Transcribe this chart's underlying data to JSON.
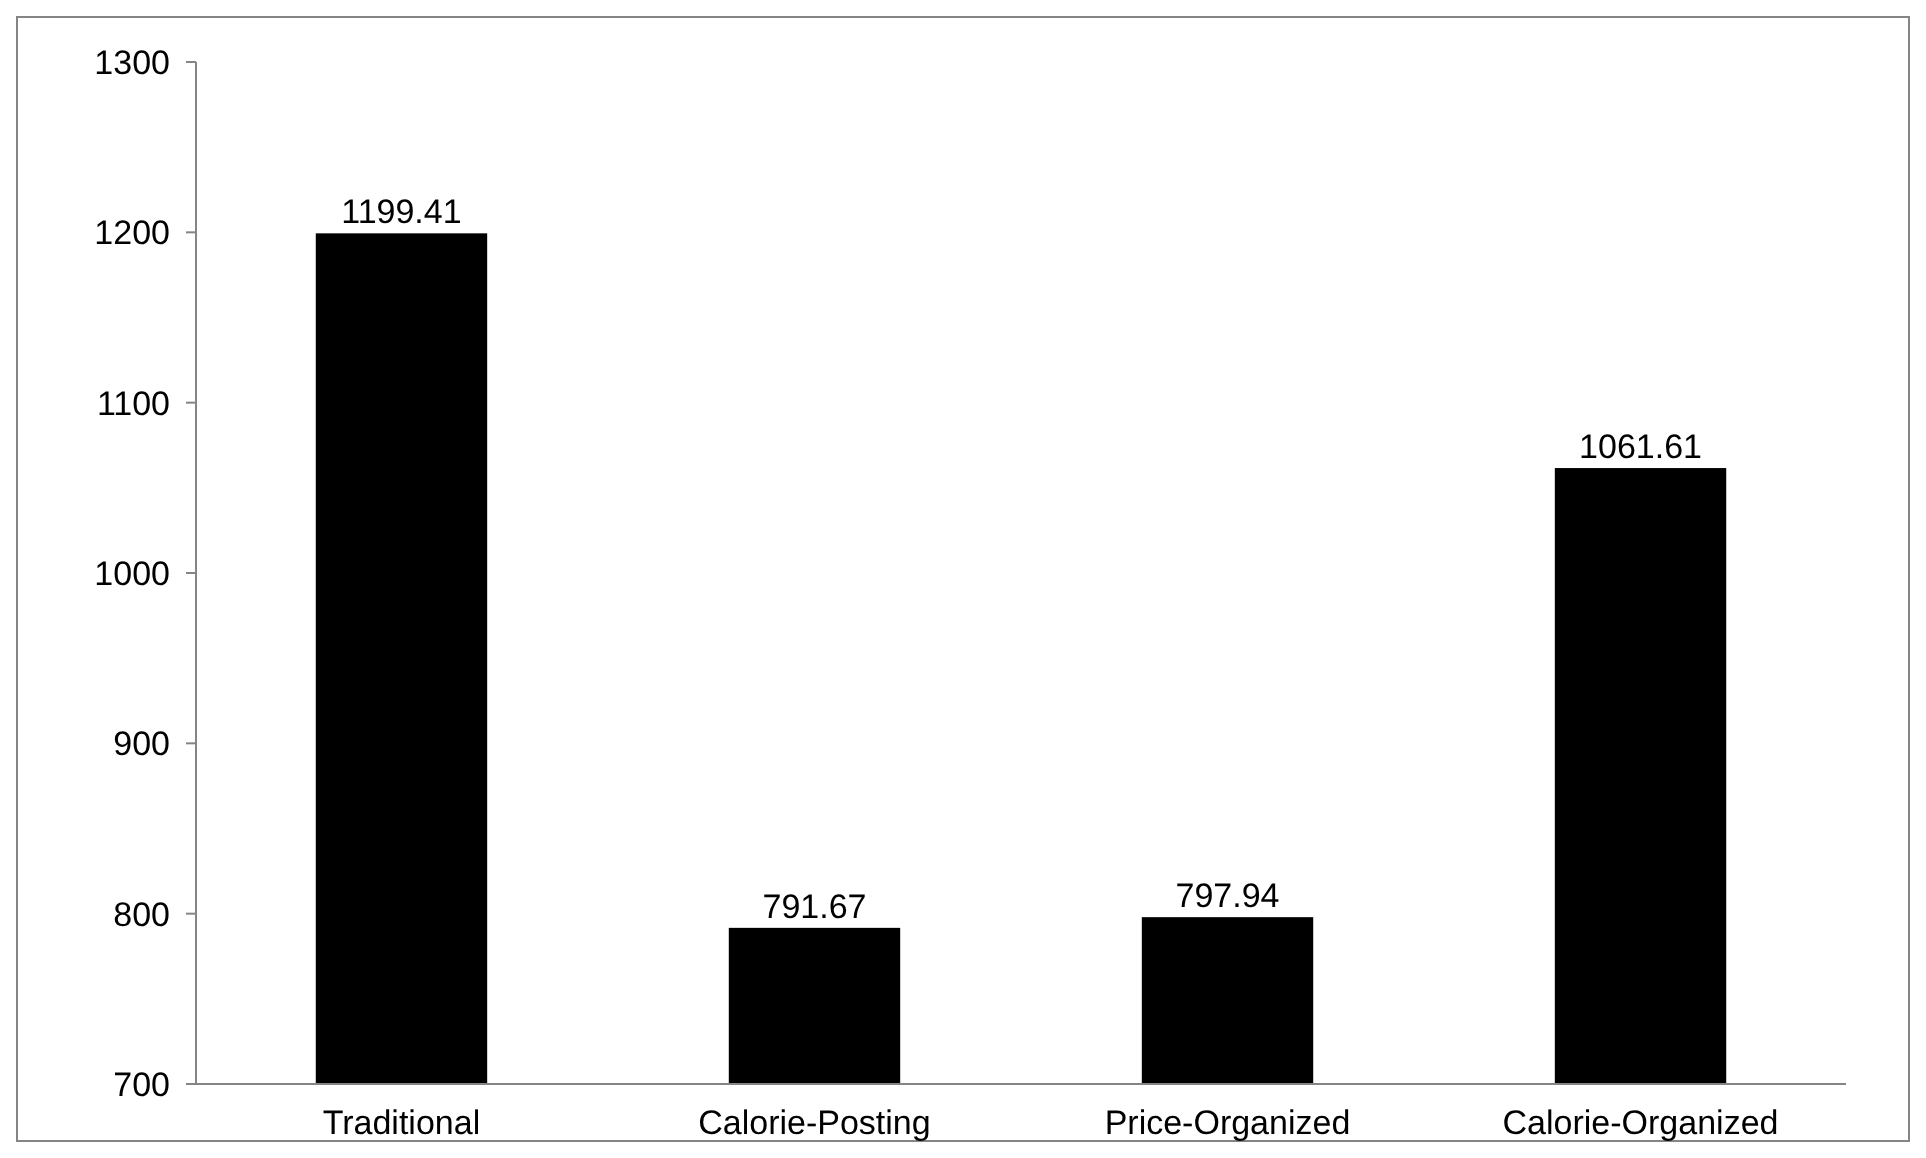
{
  "chart_data": {
    "type": "bar",
    "categories": [
      "Traditional",
      "Calorie-Posting",
      "Price-Organized",
      "Calorie-Organized"
    ],
    "values": [
      1199.41,
      791.67,
      797.94,
      1061.61
    ],
    "color": "#000000",
    "ylim": [
      700,
      1300
    ],
    "yticks": [
      700,
      800,
      900,
      1000,
      1100,
      1200,
      1300
    ],
    "grid": false,
    "data_labels": true
  }
}
